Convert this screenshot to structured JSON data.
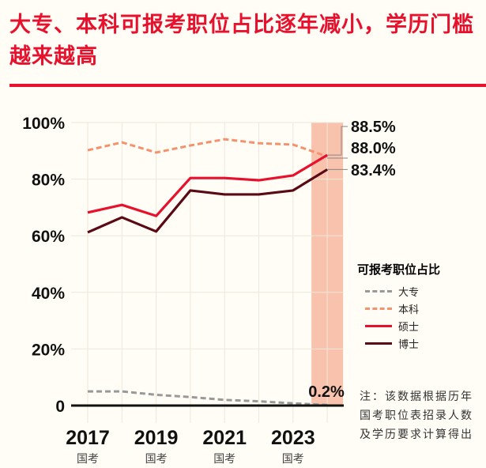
{
  "title": "大专、本科可报考职位占比逐年减小，学历门槛越来越高",
  "note": "注：该数据根据历年国考职位表招录人数及学历要求计算得出",
  "chart_data": {
    "type": "line",
    "title": "",
    "x": [
      2017,
      2018,
      2019,
      2020,
      2021,
      2022,
      2023,
      2024
    ],
    "x_tick_labels": [
      "2017",
      "2019",
      "2021",
      "2023"
    ],
    "x_tick_values": [
      2017,
      2019,
      2021,
      2023
    ],
    "x_tick_sublabel": "国考",
    "y_tick_labels": [
      "0",
      "20%",
      "40%",
      "60%",
      "80%",
      "100%"
    ],
    "y_tick_values": [
      0,
      20,
      40,
      60,
      80,
      100
    ],
    "ylim": [
      0,
      100
    ],
    "grid": true,
    "highlight_x": 2024,
    "legend_title": "可报考职位占比",
    "legend_position": "right",
    "series": [
      {
        "name": "大专",
        "color": "#999999",
        "dashed": true,
        "values": [
          5.0,
          5.0,
          3.8,
          3.0,
          2.0,
          1.5,
          0.8,
          0.2
        ]
      },
      {
        "name": "本科",
        "color": "#f4926d",
        "dashed": true,
        "values": [
          90.2,
          93.0,
          89.4,
          91.9,
          94.1,
          92.7,
          92.2,
          88.0
        ]
      },
      {
        "name": "硕士",
        "color": "#e8112d",
        "dashed": false,
        "values": [
          68.2,
          70.9,
          67.0,
          80.4,
          80.4,
          79.6,
          81.3,
          88.5
        ]
      },
      {
        "name": "博士",
        "color": "#5a0a14",
        "dashed": false,
        "values": [
          61.2,
          66.5,
          61.5,
          76.0,
          74.6,
          74.6,
          76.0,
          83.4
        ]
      }
    ],
    "annotations": [
      "88.5%",
      "88.0%",
      "83.4%",
      "0.2%"
    ]
  }
}
